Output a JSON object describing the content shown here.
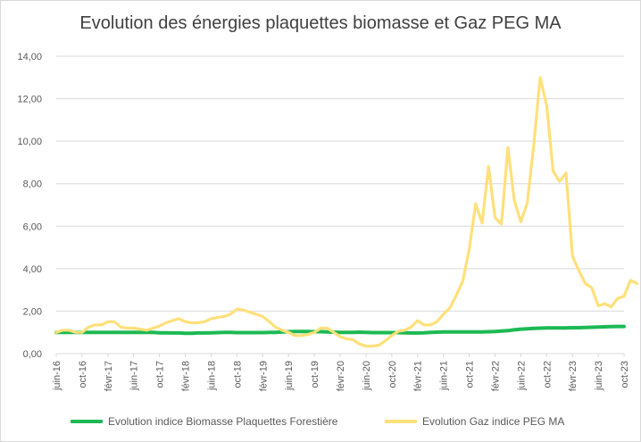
{
  "chart_data": {
    "type": "line",
    "title": "Evolution des énergies plaquettes biomasse et Gaz PEG MA",
    "xlabel": "",
    "ylabel": "",
    "ylim": [
      0,
      14
    ],
    "yticks": [
      "0,00",
      "2,00",
      "4,00",
      "6,00",
      "8,00",
      "10,00",
      "12,00",
      "14,00"
    ],
    "xtick_labels": [
      "juin-16",
      "oct-16",
      "févr-17",
      "juin-17",
      "oct-17",
      "févr-18",
      "juin-18",
      "oct-18",
      "févr-19",
      "juin-19",
      "oct-19",
      "févr-20",
      "juin-20",
      "oct-20",
      "févr-21",
      "juin-21",
      "oct-21",
      "févr-22",
      "juin-22",
      "oct-22",
      "févr-23",
      "juin-23",
      "oct-23"
    ],
    "grid": true,
    "legend_position": "bottom",
    "series": [
      {
        "name": "Evolution indice Biomasse Plaquettes Forestière",
        "color": "#1db954",
        "values": [
          1,
          1,
          1,
          1,
          1,
          1,
          1,
          1,
          1,
          1,
          1,
          1,
          1,
          1,
          1,
          1,
          0.98,
          0.98,
          0.97,
          0.97,
          0.96,
          0.96,
          0.97,
          0.97,
          0.98,
          0.99,
          1.0,
          1.0,
          0.99,
          0.99,
          0.99,
          0.99,
          0.99,
          1.0,
          1.0,
          1.02,
          1.03,
          1.04,
          1.04,
          1.04,
          1.03,
          1.03,
          1.02,
          1.01,
          1.0,
          1.0,
          1.0,
          1.01,
          1.0,
          0.99,
          0.99,
          0.99,
          0.99,
          0.99,
          0.98,
          0.97,
          0.97,
          0.98,
          1.0,
          1.01,
          1.02,
          1.02,
          1.02,
          1.02,
          1.02,
          1.02,
          1.02,
          1.03,
          1.04,
          1.06,
          1.08,
          1.12,
          1.15,
          1.17,
          1.19,
          1.2,
          1.21,
          1.21,
          1.21,
          1.21,
          1.22,
          1.22,
          1.23,
          1.24,
          1.25,
          1.26,
          1.27,
          1.28,
          1.28
        ]
      },
      {
        "name": "Evolution Gaz indice PEG MA",
        "color": "#ffe07a",
        "values": [
          1.0,
          1.1,
          1.1,
          1.0,
          1.0,
          1.25,
          1.35,
          1.35,
          1.5,
          1.5,
          1.25,
          1.2,
          1.2,
          1.15,
          1.1,
          1.2,
          1.3,
          1.45,
          1.55,
          1.65,
          1.5,
          1.45,
          1.45,
          1.5,
          1.65,
          1.7,
          1.75,
          1.85,
          2.1,
          2.05,
          1.95,
          1.85,
          1.75,
          1.5,
          1.25,
          1.1,
          1.0,
          0.85,
          0.85,
          0.9,
          1.0,
          1.2,
          1.2,
          1.0,
          0.8,
          0.7,
          0.65,
          0.45,
          0.35,
          0.35,
          0.4,
          0.6,
          0.85,
          1.05,
          1.1,
          1.25,
          1.55,
          1.35,
          1.35,
          1.5,
          1.85,
          2.15,
          2.75,
          3.4,
          4.9,
          7.05,
          6.15,
          8.8,
          6.4,
          6.1,
          9.7,
          7.2,
          6.2,
          7.1,
          9.8,
          13.0,
          11.7,
          8.6,
          8.1,
          8.5,
          4.6,
          3.9,
          3.3,
          3.1,
          2.25,
          2.35,
          2.2,
          2.6,
          2.7,
          3.45,
          3.3
        ]
      }
    ]
  }
}
